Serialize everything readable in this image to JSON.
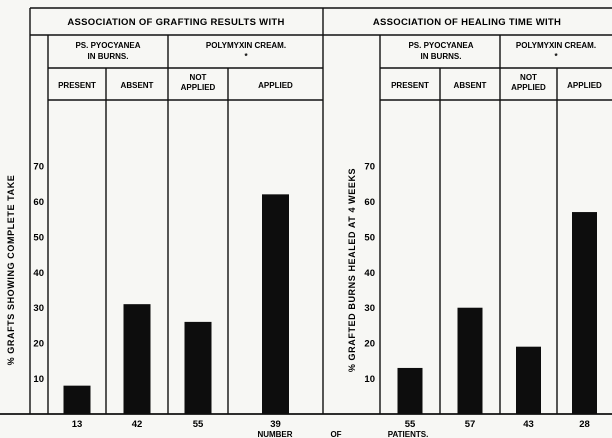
{
  "colors": {
    "bar": "#0d0d0d",
    "rule": "#111111",
    "paper": "#f7f7f4"
  },
  "footer": {
    "left": "NUMBER",
    "mid": "OF",
    "right": "PATIENTS."
  },
  "chart_data": [
    {
      "type": "bar",
      "title": "ASSOCIATION OF GRAFTING RESULTS WITH",
      "ylabel": "% GRAFTS SHOWING COMPLETE TAKE",
      "ylim": [
        0,
        80
      ],
      "yticks": [
        "10",
        "20",
        "30",
        "40",
        "50",
        "60",
        "70"
      ],
      "groups": [
        {
          "label": "PS. PYOCYANEA IN BURNS.",
          "categories": [
            "PRESENT",
            "ABSENT"
          ]
        },
        {
          "label": "POLYMYXIN CREAM. *",
          "categories": [
            "NOT APPLIED",
            "APPLIED"
          ]
        }
      ],
      "categories": [
        "PRESENT",
        "ABSENT",
        "NOT APPLIED",
        "APPLIED"
      ],
      "values": [
        8,
        31,
        26,
        62
      ],
      "counts": [
        "13",
        "42",
        "55",
        "39"
      ]
    },
    {
      "type": "bar",
      "title": "ASSOCIATION OF HEALING TIME WITH",
      "ylabel": "% GRAFTED BURNS HEALED AT 4 WEEKS",
      "ylim": [
        0,
        80
      ],
      "yticks": [
        "10",
        "20",
        "30",
        "40",
        "50",
        "60",
        "70"
      ],
      "groups": [
        {
          "label": "PS. PYOCYANEA IN BURNS.",
          "categories": [
            "PRESENT",
            "ABSENT"
          ]
        },
        {
          "label": "POLYMYXIN CREAM. *",
          "categories": [
            "NOT APPLIED",
            "APPLIED"
          ]
        }
      ],
      "categories": [
        "PRESENT",
        "ABSENT",
        "NOT APPLIED",
        "APPLIED"
      ],
      "values": [
        13,
        30,
        19,
        57
      ],
      "counts": [
        "55",
        "57",
        "43",
        "28"
      ]
    }
  ]
}
